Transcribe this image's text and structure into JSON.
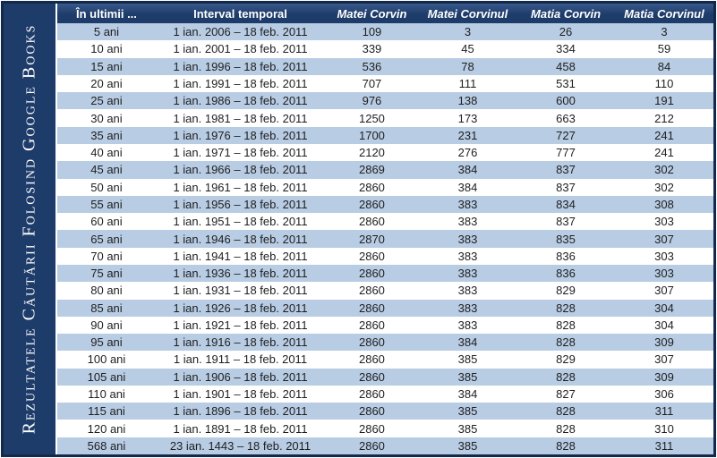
{
  "sidebar": {
    "title": "Rezultatele Căutării Folosind Google Books"
  },
  "table": {
    "columns": [
      "În ultimii ...",
      "Interval temporal",
      "Matei Corvin",
      "Matei Corvinul",
      "Matia Corvin",
      "Matia Corvinul"
    ],
    "rows": [
      [
        "5 ani",
        "1 ian. 2006 – 18 feb. 2011",
        "109",
        "3",
        "26",
        "3"
      ],
      [
        "10 ani",
        "1 ian. 2001 – 18 feb. 2011",
        "339",
        "45",
        "334",
        "59"
      ],
      [
        "15 ani",
        "1 ian. 1996 – 18 feb. 2011",
        "536",
        "78",
        "458",
        "84"
      ],
      [
        "20 ani",
        "1 ian. 1991 – 18 feb. 2011",
        "707",
        "111",
        "531",
        "110"
      ],
      [
        "25 ani",
        "1 ian. 1986 – 18 feb. 2011",
        "976",
        "138",
        "600",
        "191"
      ],
      [
        "30 ani",
        "1 ian. 1981 – 18 feb. 2011",
        "1250",
        "173",
        "663",
        "212"
      ],
      [
        "35 ani",
        "1 ian. 1976 – 18 feb. 2011",
        "1700",
        "231",
        "727",
        "241"
      ],
      [
        "40 ani",
        "1 ian. 1971 – 18 feb. 2011",
        "2120",
        "276",
        "777",
        "241"
      ],
      [
        "45 ani",
        "1 ian. 1966 – 18 feb. 2011",
        "2869",
        "384",
        "837",
        "302"
      ],
      [
        "50 ani",
        "1 ian. 1961 – 18 feb. 2011",
        "2860",
        "384",
        "837",
        "302"
      ],
      [
        "55 ani",
        "1 ian. 1956 – 18 feb. 2011",
        "2860",
        "383",
        "834",
        "308"
      ],
      [
        "60 ani",
        "1 ian. 1951 – 18 feb. 2011",
        "2860",
        "383",
        "837",
        "303"
      ],
      [
        "65 ani",
        "1 ian. 1946 – 18 feb. 2011",
        "2870",
        "383",
        "835",
        "307"
      ],
      [
        "70 ani",
        "1 ian. 1941 – 18 feb. 2011",
        "2860",
        "383",
        "836",
        "303"
      ],
      [
        "75 ani",
        "1 ian. 1936 – 18 feb. 2011",
        "2860",
        "383",
        "836",
        "303"
      ],
      [
        "80 ani",
        "1 ian. 1931 – 18 feb. 2011",
        "2860",
        "383",
        "829",
        "307"
      ],
      [
        "85 ani",
        "1 ian. 1926 – 18 feb. 2011",
        "2860",
        "383",
        "828",
        "304"
      ],
      [
        "90 ani",
        "1 ian. 1921 – 18 feb. 2011",
        "2860",
        "383",
        "828",
        "304"
      ],
      [
        "95 ani",
        "1 ian. 1916 – 18 feb. 2011",
        "2860",
        "384",
        "828",
        "309"
      ],
      [
        "100 ani",
        "1 ian. 1911 – 18 feb. 2011",
        "2860",
        "385",
        "829",
        "307"
      ],
      [
        "105 ani",
        "1 ian. 1906 – 18 feb. 2011",
        "2860",
        "385",
        "828",
        "309"
      ],
      [
        "110 ani",
        "1 ian. 1901 – 18 feb. 2011",
        "2860",
        "384",
        "827",
        "306"
      ],
      [
        "115 ani",
        "1 ian. 1896 – 18 feb. 2011",
        "2860",
        "385",
        "828",
        "311"
      ],
      [
        "120 ani",
        "1 ian. 1891 – 18 feb. 2011",
        "2860",
        "385",
        "828",
        "310"
      ],
      [
        "568 ani",
        "23 ian. 1443 – 18 feb. 2011",
        "2860",
        "385",
        "828",
        "311"
      ]
    ]
  },
  "colors": {
    "navy": "#1E3C6A",
    "stripe": "#B8CCE4",
    "border": "#13294B",
    "text": "#1F1F1F",
    "header_text": "#FFFFFF"
  }
}
